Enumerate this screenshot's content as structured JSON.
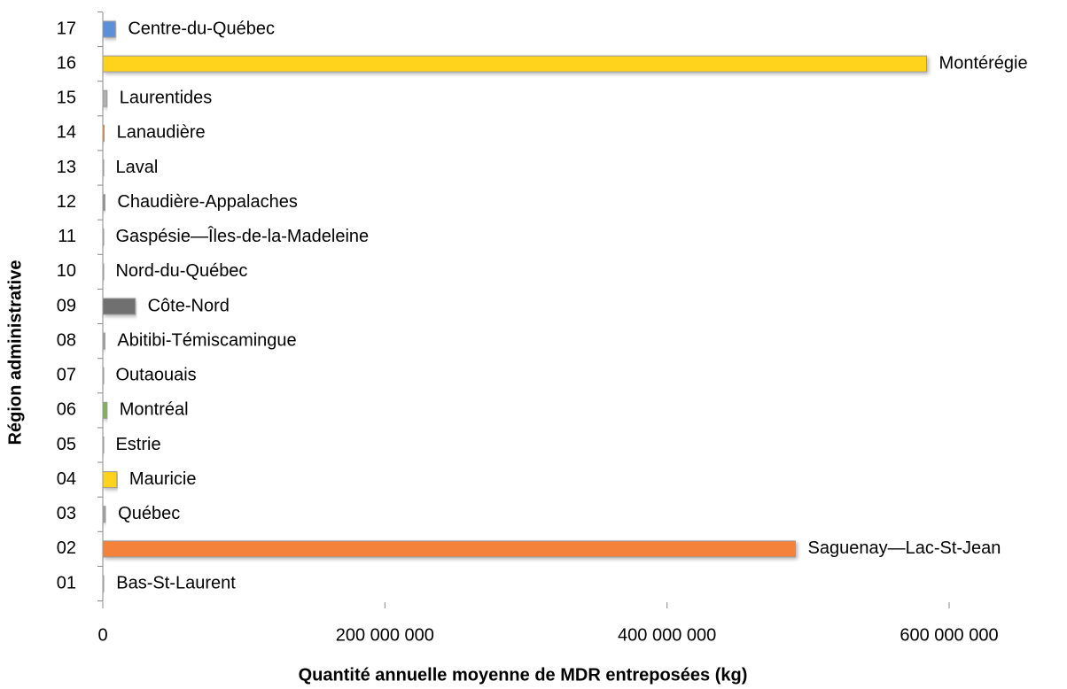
{
  "chart_data": {
    "type": "bar",
    "orientation": "horizontal",
    "x_label": "Quantité annuelle moyenne de MDR entreposées (kg)",
    "y_label": "Région administrative",
    "categories": [
      "01",
      "02",
      "03",
      "04",
      "05",
      "06",
      "07",
      "08",
      "09",
      "10",
      "11",
      "12",
      "13",
      "14",
      "15",
      "16",
      "17"
    ],
    "labels": [
      "Bas-St-Laurent",
      "Saguenay—Lac-St-Jean",
      "Québec",
      "Mauricie",
      "Estrie",
      "Montréal",
      "Outaouais",
      "Abitibi-Témiscamingue",
      "Côte-Nord",
      "Nord-du-Québec",
      "Gaspésie—Îles-de-la-Madeleine",
      "Chaudière-Appalaches",
      "Laval",
      "Lanaudière",
      "Laurentides",
      "Montérégie",
      "Centre-du-Québec"
    ],
    "values": [
      800000,
      491000000,
      2000000,
      10000000,
      300000,
      3000000,
      300000,
      1500000,
      23000000,
      300000,
      300000,
      1500000,
      300000,
      1000000,
      3000000,
      584000000,
      9000000
    ],
    "colors": [
      "#a0a0a0",
      "#f5823a",
      "#a0a0a0",
      "#ffd21f",
      "#ffffff",
      "#7fb356",
      "#ffffff",
      "#a0a0a0",
      "#707070",
      "#ffffff",
      "#ffffff",
      "#909090",
      "#ffffff",
      "#f5823a",
      "#b0b0b0",
      "#ffd21f",
      "#5b8fd9"
    ],
    "xlim": [
      0,
      600000000
    ],
    "xticks": [
      0,
      {
        "value": 200000000,
        "label": "200 000 000"
      },
      {
        "value": 400000000,
        "label": "400 000 000"
      },
      {
        "value": 600000000,
        "label": "600 000 000"
      }
    ],
    "grid": false
  }
}
